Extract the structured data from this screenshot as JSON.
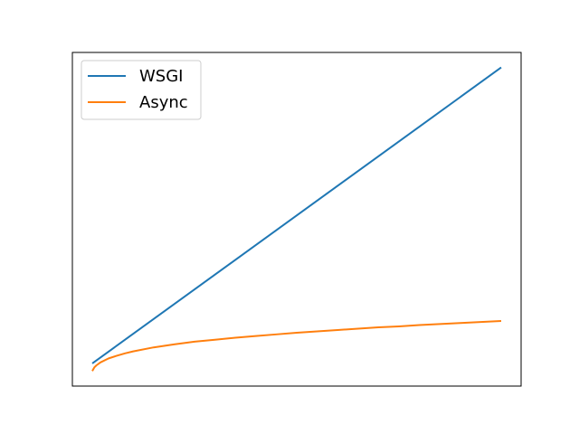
{
  "chart_data": {
    "type": "line",
    "title": "",
    "xlabel": "",
    "ylabel": "",
    "xticks": "none",
    "yticks": "none",
    "grid": false,
    "legend_position": "top-left",
    "xlim": [
      0,
      1
    ],
    "ylim": [
      0,
      1
    ],
    "series": [
      {
        "name": "WSGI",
        "color": "#1f77b4",
        "points": [
          [
            0.0,
            0.068
          ],
          [
            1.0,
            0.955
          ]
        ]
      },
      {
        "name": "Async",
        "color": "#ff7f0e",
        "points": [
          [
            0.0,
            0.045
          ],
          [
            0.005,
            0.056
          ],
          [
            0.01,
            0.062
          ],
          [
            0.02,
            0.071
          ],
          [
            0.04,
            0.083
          ],
          [
            0.06,
            0.091
          ],
          [
            0.08,
            0.098
          ],
          [
            0.1,
            0.104
          ],
          [
            0.15,
            0.116
          ],
          [
            0.2,
            0.125
          ],
          [
            0.25,
            0.133
          ],
          [
            0.3,
            0.139
          ],
          [
            0.35,
            0.145
          ],
          [
            0.4,
            0.15
          ],
          [
            0.45,
            0.155
          ],
          [
            0.5,
            0.16
          ],
          [
            0.55,
            0.164
          ],
          [
            0.6,
            0.168
          ],
          [
            0.65,
            0.172
          ],
          [
            0.7,
            0.176
          ],
          [
            0.75,
            0.179
          ],
          [
            0.8,
            0.183
          ],
          [
            0.85,
            0.186
          ],
          [
            0.9,
            0.189
          ],
          [
            0.95,
            0.192
          ],
          [
            1.0,
            0.195
          ]
        ]
      }
    ]
  }
}
